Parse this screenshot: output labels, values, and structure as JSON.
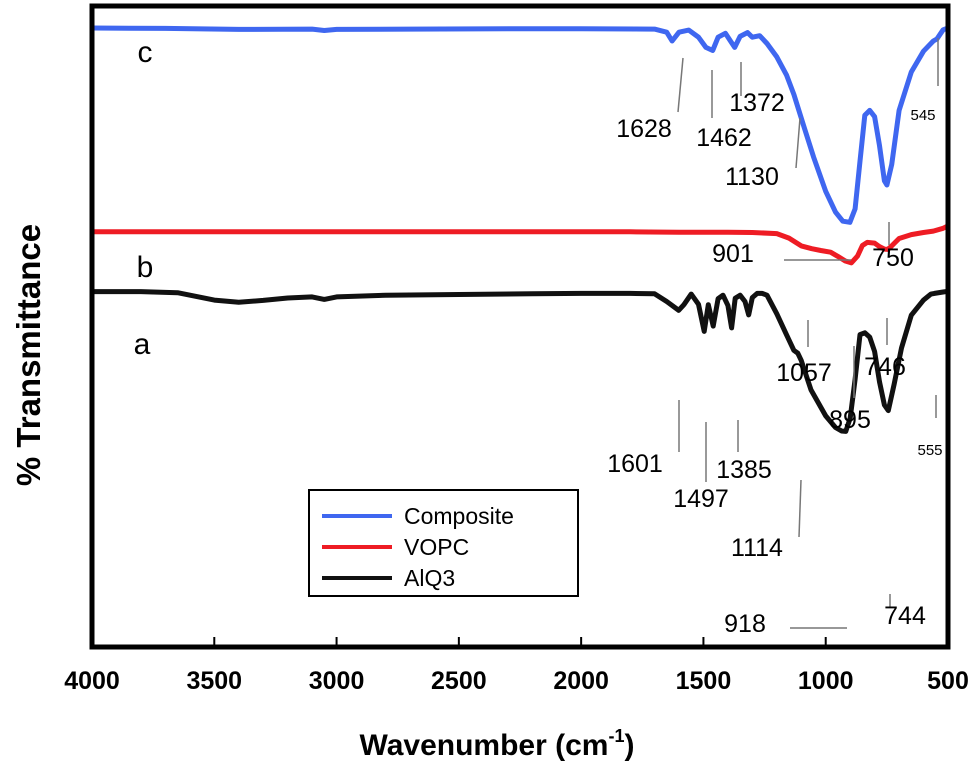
{
  "chart_data": {
    "type": "line",
    "xlabel": "Wavenumber (cm",
    "xlabel_sup": "-1",
    "xlabel_close": ")",
    "ylabel": "% Transmittance",
    "xlim": [
      4000,
      500
    ],
    "x_reversed": true,
    "x_ticks": [
      "4000",
      "3500",
      "3000",
      "2500",
      "2000",
      "1500",
      "1000",
      "500"
    ],
    "y_ticks": false,
    "grid": false,
    "legend": "bottom-center",
    "legend_entries": [
      {
        "name": "Composite",
        "color": "#3f67f0"
      },
      {
        "name": "VOPC",
        "color": "#ee1c24"
      },
      {
        "name": "AlQ3",
        "color": "#111111"
      }
    ],
    "series": [
      {
        "name": "Composite",
        "label": "c",
        "color": "#3f67f0",
        "x": [
          4000,
          3700,
          3400,
          3100,
          3050,
          3000,
          2700,
          2300,
          2000,
          1700,
          1650,
          1628,
          1600,
          1560,
          1520,
          1490,
          1462,
          1440,
          1410,
          1390,
          1372,
          1350,
          1320,
          1300,
          1270,
          1240,
          1200,
          1160,
          1130,
          1090,
          1050,
          1000,
          960,
          930,
          901,
          880,
          860,
          840,
          820,
          800,
          780,
          760,
          750,
          730,
          700,
          650,
          600,
          560,
          545,
          520,
          500
        ],
        "y": [
          100,
          99.9,
          99.6,
          99.7,
          99.3,
          99.6,
          99.7,
          99.8,
          99.8,
          99.7,
          98.8,
          96.3,
          98.8,
          99.4,
          97.4,
          94.5,
          93.6,
          97.4,
          98.5,
          96.4,
          94.5,
          97.6,
          98.7,
          97.4,
          97.8,
          95.6,
          91.8,
          86.6,
          81.1,
          72.2,
          63.4,
          53.6,
          47.7,
          45.1,
          44.8,
          48.6,
          62.2,
          75.2,
          76.6,
          74.8,
          66.6,
          56.6,
          55.4,
          61.2,
          76.6,
          87.5,
          93.4,
          96.3,
          96.9,
          99.5,
          100
        ]
      },
      {
        "name": "VOPC",
        "label": "b",
        "color": "#ee1c24",
        "x": [
          4000,
          3500,
          3000,
          2500,
          2000,
          1800,
          1600,
          1400,
          1300,
          1200,
          1150,
          1100,
          1057,
          1020,
          980,
          950,
          920,
          895,
          870,
          850,
          830,
          800,
          780,
          760,
          746,
          730,
          700,
          650,
          600,
          560,
          520,
          500
        ],
        "y": [
          42.1,
          42.1,
          42.1,
          42.1,
          42.1,
          42.1,
          42,
          42,
          41.9,
          41.6,
          40.3,
          38.1,
          37.3,
          36.8,
          36.3,
          35.1,
          33.8,
          33.3,
          35.2,
          38.2,
          39.1,
          38.9,
          37.9,
          37.2,
          37.1,
          38.1,
          40.2,
          41.3,
          41.9,
          42.3,
          43.1,
          43.8
        ]
      },
      {
        "name": "AlQ3",
        "label": "a",
        "color": "#111111",
        "x": [
          4000,
          3800,
          3650,
          3500,
          3400,
          3300,
          3200,
          3100,
          3050,
          3000,
          2800,
          2500,
          2200,
          2000,
          1800,
          1700,
          1650,
          1601,
          1580,
          1550,
          1520,
          1497,
          1480,
          1460,
          1440,
          1420,
          1400,
          1385,
          1370,
          1350,
          1330,
          1315,
          1300,
          1280,
          1260,
          1240,
          1200,
          1160,
          1130,
          1114,
          1100,
          1060,
          1000,
          960,
          935,
          918,
          900,
          880,
          860,
          840,
          820,
          800,
          780,
          760,
          744,
          720,
          690,
          650,
          600,
          570,
          555,
          520,
          500
        ],
        "y": [
          25.1,
          25.1,
          24.8,
          22.7,
          22.1,
          22.6,
          23.3,
          23.6,
          22.9,
          23.6,
          24.1,
          24.3,
          24.5,
          24.6,
          24.6,
          24.5,
          22.3,
          19.8,
          21.4,
          24.4,
          21.5,
          13.8,
          21.4,
          15.3,
          23.1,
          24.1,
          21.2,
          14.8,
          23.2,
          24.1,
          22.3,
          18.5,
          23.4,
          24.6,
          24.6,
          24.1,
          18.8,
          12.8,
          8.4,
          7.6,
          5.5,
          -2.8,
          -10.2,
          -13.5,
          -14.5,
          -14.6,
          -10.8,
          0.2,
          12.9,
          13.4,
          12.2,
          8.1,
          -0.5,
          -7.1,
          -8.7,
          -1.1,
          9.1,
          18.4,
          22.7,
          24.4,
          24.6,
          25,
          25.2
        ]
      }
    ],
    "annotations": [
      {
        "text": "1628",
        "x": 1628,
        "y": 96.3,
        "series": "Composite"
      },
      {
        "text": "1462",
        "x": 1462,
        "y": 93.6,
        "series": "Composite"
      },
      {
        "text": "1372",
        "x": 1372,
        "y": 94.5,
        "series": "Composite"
      },
      {
        "text": "1130",
        "x": 1130,
        "y": 81.1,
        "series": "Composite"
      },
      {
        "text": "901",
        "x": 901,
        "y": 44.8,
        "series": "Composite"
      },
      {
        "text": "750",
        "x": 750,
        "y": 55.4,
        "series": "Composite"
      },
      {
        "text": "545",
        "x": 545,
        "y": 96.9,
        "series": "Composite"
      },
      {
        "text": "1057",
        "x": 1057,
        "y": 37.3,
        "series": "VOPC"
      },
      {
        "text": "895",
        "x": 895,
        "y": 33.3,
        "series": "VOPC"
      },
      {
        "text": "746",
        "x": 746,
        "y": 37.1,
        "series": "VOPC"
      },
      {
        "text": "1601",
        "x": 1601,
        "y": 19.8,
        "series": "AlQ3"
      },
      {
        "text": "1497",
        "x": 1497,
        "y": 13.8,
        "series": "AlQ3"
      },
      {
        "text": "1385",
        "x": 1385,
        "y": 14.8,
        "series": "AlQ3"
      },
      {
        "text": "1114",
        "x": 1114,
        "y": 7.6,
        "series": "AlQ3"
      },
      {
        "text": "918",
        "x": 918,
        "y": -14.6,
        "series": "AlQ3"
      },
      {
        "text": "744",
        "x": 744,
        "y": -8.7,
        "series": "AlQ3"
      },
      {
        "text": "555",
        "x": 555,
        "y": 24.6,
        "series": "AlQ3"
      }
    ]
  }
}
